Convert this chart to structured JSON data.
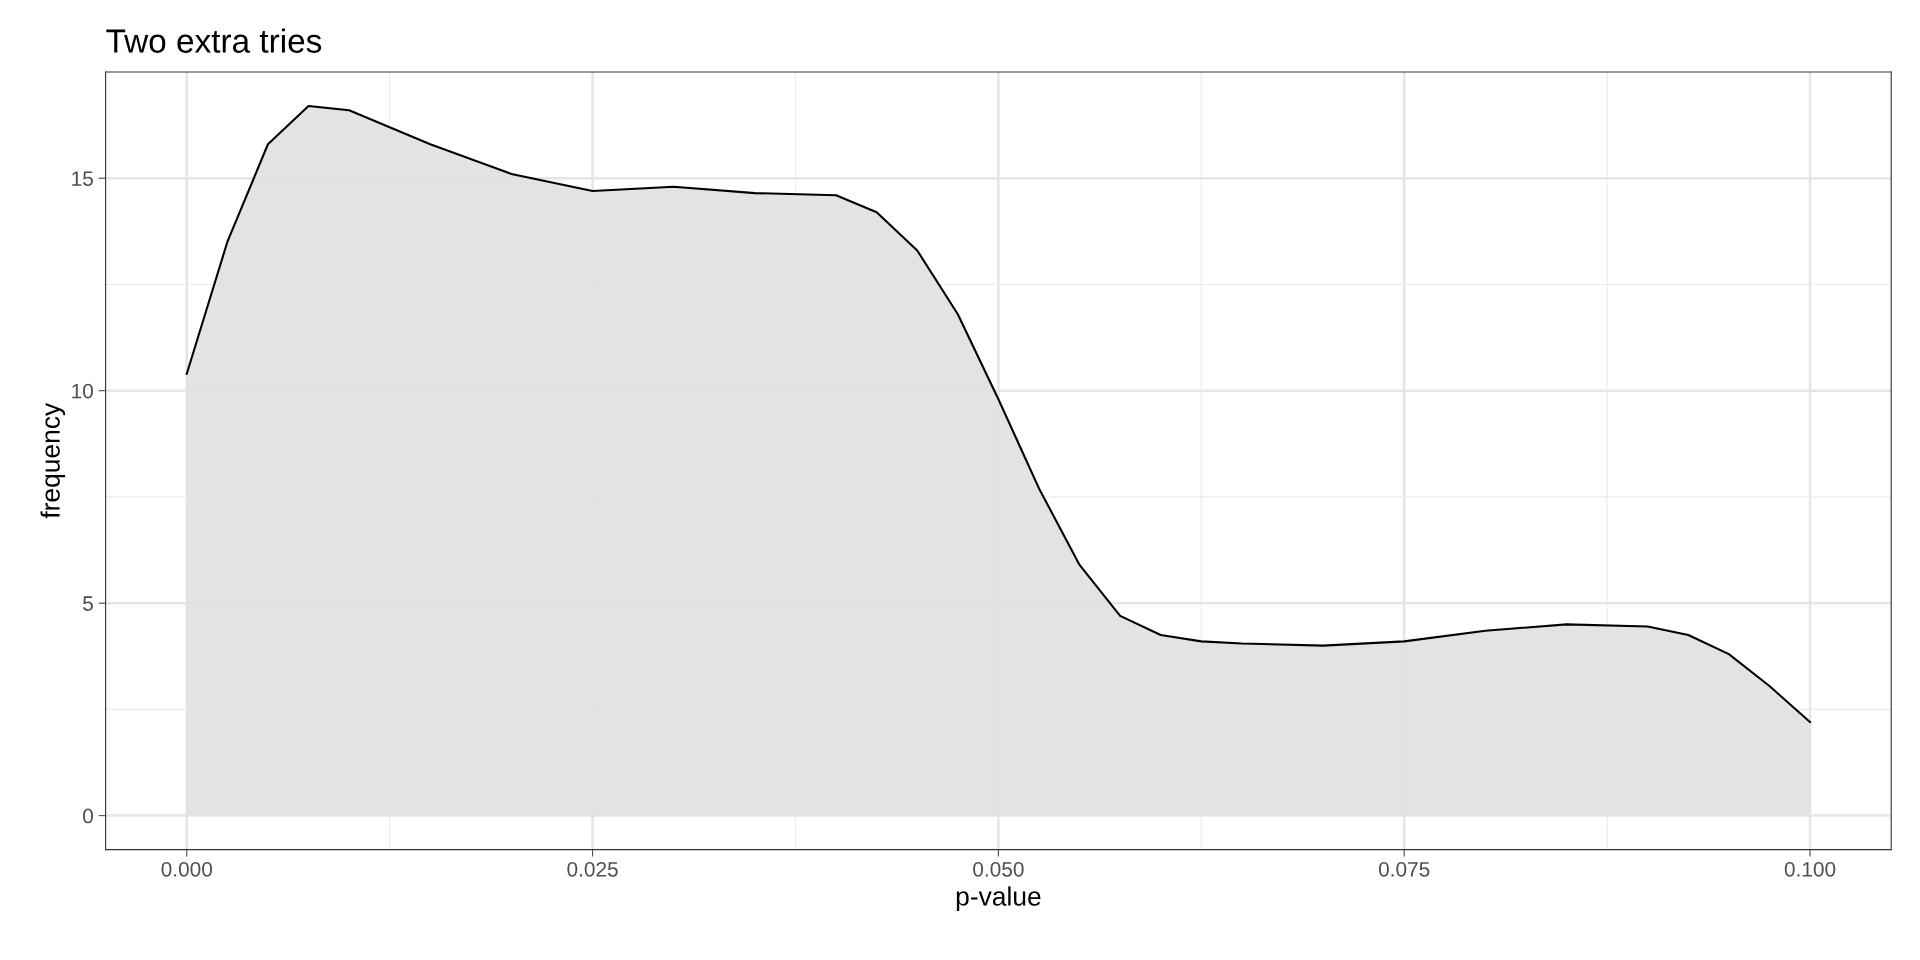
{
  "chart_data": {
    "type": "area",
    "title": "Two extra tries",
    "xlabel": "p-value",
    "ylabel": "frequency",
    "x": [
      0,
      0.0025,
      0.005,
      0.0075,
      0.01,
      0.0125,
      0.015,
      0.02,
      0.025,
      0.03,
      0.035,
      0.04,
      0.0425,
      0.045,
      0.0475,
      0.05,
      0.0525,
      0.055,
      0.0575,
      0.06,
      0.0625,
      0.065,
      0.07,
      0.075,
      0.08,
      0.085,
      0.09,
      0.0925,
      0.095,
      0.0975,
      0.1
    ],
    "series": [
      {
        "color": "#e0e0e0",
        "values": [
          10.4,
          13.5,
          15.8,
          16.7,
          16.6,
          16.2,
          15.8,
          15.1,
          14.7,
          14.8,
          14.65,
          14.6,
          14.2,
          13.3,
          11.8,
          9.8,
          7.7,
          5.9,
          4.7,
          4.25,
          4.1,
          4.05,
          4.0,
          4.1,
          4.35,
          4.5,
          4.45,
          4.25,
          3.8,
          3.05,
          2.2
        ]
      }
    ],
    "xlim": [
      -0.005,
      0.105
    ],
    "ylim": [
      -0.8,
      17.5
    ],
    "xticks": [
      {
        "value": 0,
        "label": "0.000"
      },
      {
        "value": 0.025,
        "label": "0.025"
      },
      {
        "value": 0.05,
        "label": "0.050"
      },
      {
        "value": 0.075,
        "label": "0.075"
      },
      {
        "value": 0.1,
        "label": "0.100"
      }
    ],
    "yticks": [
      0,
      5,
      10,
      15
    ],
    "grid": true
  }
}
